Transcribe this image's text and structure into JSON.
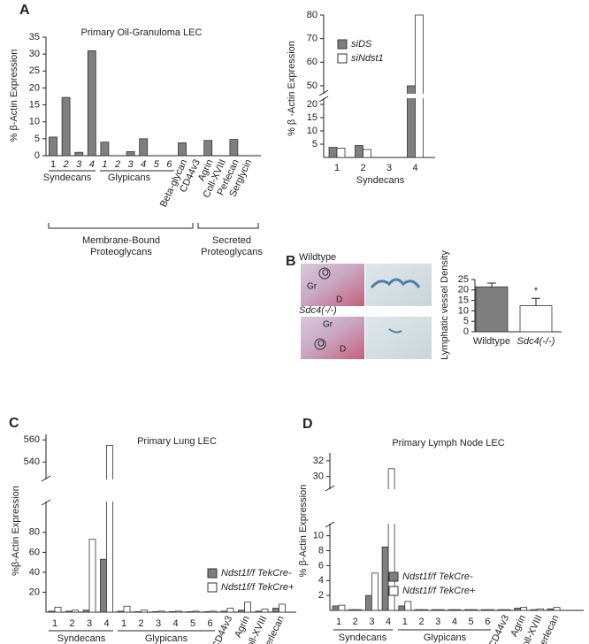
{
  "panels": [
    "A",
    "B",
    "C",
    "D"
  ],
  "micrographs": {
    "rows": [
      {
        "label": "Wildtype",
        "marks": [
          "Gr",
          "O",
          "D"
        ]
      },
      {
        "label": "Sdc4(-/-)",
        "marks": [
          "Gr",
          "O",
          "D"
        ]
      }
    ]
  },
  "chart_data": [
    {
      "type": "bar",
      "title": "Primary Oil-Granuloma LEC",
      "ylabel": "% β-Actin Expression",
      "categories": [
        "1",
        "2",
        "3",
        "4",
        "1",
        "2",
        "3",
        "4",
        "5",
        "6",
        "Beta-glycan",
        "CD44v3",
        "Agrin",
        "Coll-XVIII",
        "Perlecan",
        "Serglycin"
      ],
      "values": [
        5.5,
        17.2,
        1,
        31,
        4,
        0,
        1.2,
        5,
        0,
        0,
        3.8,
        0,
        4.5,
        0,
        4.8,
        0
      ],
      "color": "#7f7f7f",
      "ylim": [
        0,
        35
      ],
      "yticks": [
        0,
        5,
        10,
        15,
        20,
        25,
        30,
        35
      ],
      "groups": [
        "Syndecans",
        "Glypicans"
      ],
      "brackets": [
        [
          "Membrane-Bound",
          "Proteoglycans"
        ],
        [
          "Secreted",
          "Proteoglycans"
        ]
      ]
    },
    {
      "type": "bar",
      "ylabel": "% β -Actin Expression",
      "xlabel": "Syndecans",
      "categories": [
        "1",
        "2",
        "3",
        "4"
      ],
      "series": [
        {
          "name": "siDS",
          "color": "#7f7f7f",
          "values": [
            3.8,
            4.5,
            0,
            50
          ]
        },
        {
          "name": "siNdst1",
          "color": "#ffffff",
          "values": [
            3.5,
            3.0,
            0,
            80
          ]
        }
      ],
      "ylim": [
        0,
        80
      ],
      "ybreak": [
        22,
        47
      ],
      "yticks": [
        5,
        10,
        15,
        20,
        50,
        60,
        70,
        80
      ]
    },
    {
      "type": "bar",
      "ylabel": "Lymphatic vessel Density",
      "categories": [
        "Wildtype",
        "Sdc4(-/-)"
      ],
      "values": [
        21.5,
        12.5
      ],
      "errors": [
        1.8,
        3.5
      ],
      "colors": [
        "#7f7f7f",
        "#ffffff"
      ],
      "ylim": [
        0,
        25
      ],
      "yticks": [
        0,
        5,
        10,
        15,
        20,
        25
      ],
      "annotations": [
        "*"
      ]
    },
    {
      "type": "bar",
      "title": "Primary Lung LEC",
      "ylabel": "%β-Actin Expression",
      "categories": [
        "1",
        "2",
        "3",
        "4",
        "1",
        "2",
        "3",
        "4",
        "5",
        "6",
        "CD44v3",
        "Agrin",
        "Coll-XVIII",
        "Perlecan"
      ],
      "series": [
        {
          "name": "Ndst1f/f TekCre-",
          "color": "#7f7f7f",
          "values": [
            1,
            1,
            2,
            53,
            1,
            0.5,
            0.5,
            0.5,
            0.5,
            0.5,
            1,
            2,
            1,
            4
          ]
        },
        {
          "name": "Ndst1f/f TekCre+",
          "color": "#ffffff",
          "values": [
            5,
            2,
            73,
            555,
            6,
            2,
            1,
            1,
            1,
            1,
            4,
            10,
            3,
            8
          ]
        }
      ],
      "ylim": [
        0,
        565
      ],
      "ybreak": [
        110,
        525
      ],
      "yticks": [
        20,
        40,
        60,
        80,
        540,
        560
      ],
      "groups": [
        "Syndecans",
        "Glypicans"
      ]
    },
    {
      "type": "bar",
      "title": "Primary Lymph Node LEC",
      "ylabel": "% β-Actin Expression",
      "categories": [
        "1",
        "2",
        "3",
        "4",
        "1",
        "2",
        "3",
        "4",
        "5",
        "6",
        "CD44v3",
        "Agrin",
        "Coll-XVIII",
        "Perlecan"
      ],
      "series": [
        {
          "name": "Ndst1f/f TekCre-",
          "color": "#7f7f7f",
          "values": [
            0.6,
            0.1,
            2,
            8.5,
            0.6,
            0.1,
            0.1,
            0.1,
            0.1,
            0.1,
            0.1,
            0.3,
            0.1,
            0.2
          ]
        },
        {
          "name": "Ndst1f/f TekCre+",
          "color": "#ffffff",
          "values": [
            0.7,
            0.1,
            5,
            31,
            1.2,
            0.1,
            0.1,
            0.1,
            0.1,
            0.1,
            0.1,
            0.4,
            0.2,
            0.4
          ]
        }
      ],
      "ylim": [
        0,
        33
      ],
      "ybreak": [
        11.5,
        28.5
      ],
      "yticks": [
        2,
        4,
        6,
        8,
        10,
        30,
        32
      ],
      "groups": [
        "Syndecans",
        "Glypicans"
      ]
    }
  ]
}
